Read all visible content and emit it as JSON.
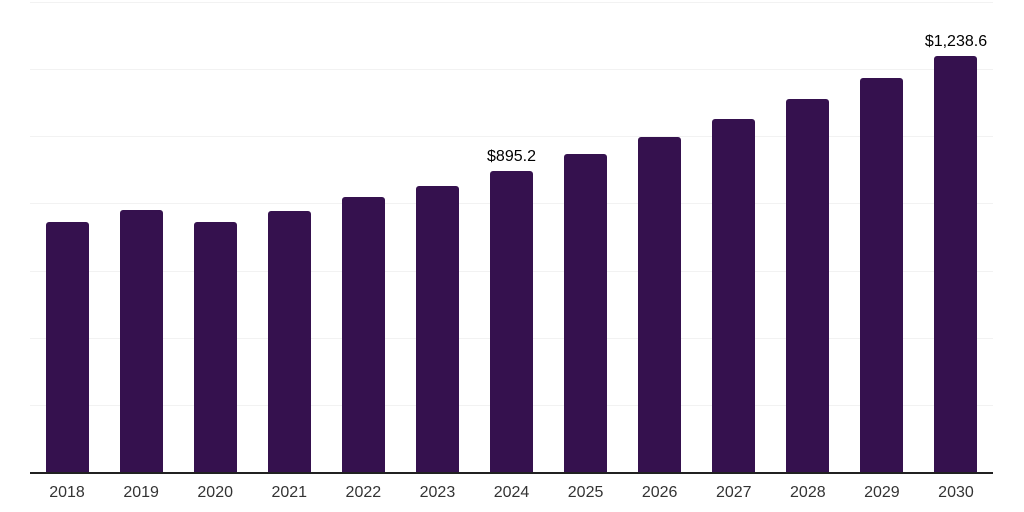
{
  "chart_data": {
    "type": "bar",
    "categories": [
      "2018",
      "2019",
      "2020",
      "2021",
      "2022",
      "2023",
      "2024",
      "2025",
      "2026",
      "2027",
      "2028",
      "2029",
      "2030"
    ],
    "values": [
      746,
      780,
      744,
      777,
      818,
      853,
      895.2,
      947,
      997,
      1051,
      1110,
      1173,
      1238.6
    ],
    "annotations": [
      {
        "index": 6,
        "text": "$895.2"
      },
      {
        "index": 12,
        "text": "$1,238.6"
      }
    ],
    "title": "",
    "xlabel": "",
    "ylabel": "",
    "ylim": [
      0,
      1400
    ],
    "gridline_step": 200,
    "grid": "horizontal",
    "legend": "none",
    "y_axis_labels_visible": false,
    "style": {
      "background": "#ffffff",
      "bar_color": "#35114E",
      "gridline_color": "#f2f2f2",
      "axis_color": "#212121",
      "tick_color": "#333333",
      "label_color": "#000000"
    }
  }
}
